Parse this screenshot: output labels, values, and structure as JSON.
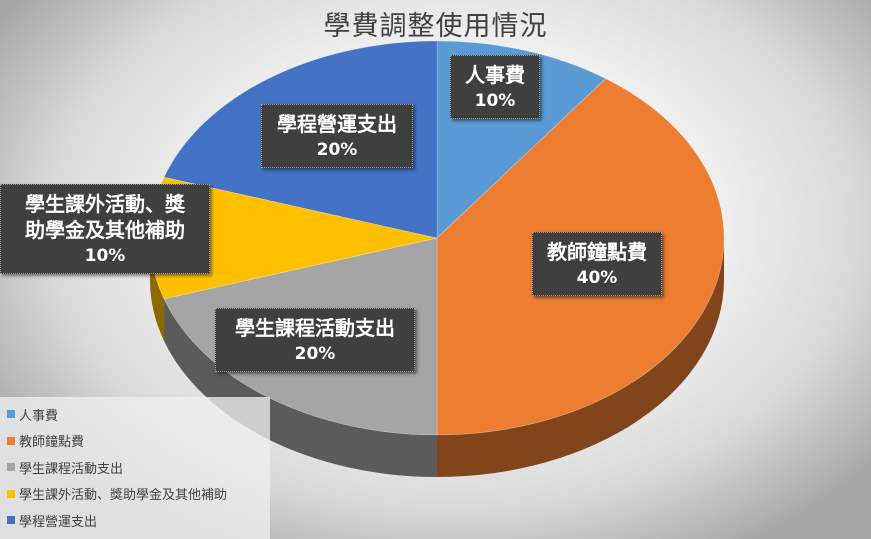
{
  "chart_data": {
    "type": "pie",
    "title": "學費調整使用情況",
    "slices": [
      {
        "name": "人事費",
        "value": 10,
        "label": "10%",
        "color": "#5b9bd5"
      },
      {
        "name": "教師鐘點費",
        "value": 40,
        "label": "40%",
        "color": "#ed7d31"
      },
      {
        "name": "學生課程活動支出",
        "value": 20,
        "label": "20%",
        "color": "#a5a5a5"
      },
      {
        "name": "學生課外活動、獎助學金及其他補助",
        "value": 10,
        "label": "10%",
        "color": "#ffc000"
      },
      {
        "name": "學程營運支出",
        "value": 20,
        "label": "20%",
        "color": "#4472c4"
      }
    ],
    "data_labels": [
      {
        "lines": [
          "人事費"
        ],
        "pct": "10%"
      },
      {
        "lines": [
          "教師鐘點費"
        ],
        "pct": "40%"
      },
      {
        "lines": [
          "學生課程活動支出"
        ],
        "pct": "20%"
      },
      {
        "lines": [
          "學生課外活動、獎",
          "助學金及其他補助"
        ],
        "pct": "10%"
      },
      {
        "lines": [
          "學程營運支出"
        ],
        "pct": "20%"
      }
    ],
    "legend": {
      "placement": "bottom-left",
      "entries": [
        "人事費",
        "教師鐘點費",
        "學生課程活動支出",
        "學生課外活動、獎助學金及其他補助",
        "學程營運支出"
      ]
    },
    "style": "3d"
  }
}
